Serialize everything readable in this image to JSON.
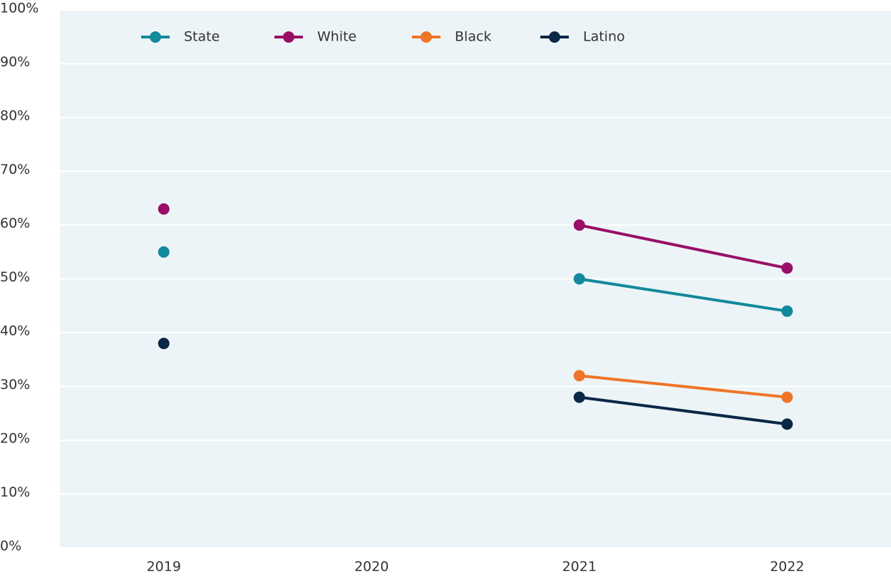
{
  "chart_data": {
    "type": "line",
    "categories": [
      "2019",
      "2020",
      "2021",
      "2022"
    ],
    "series": [
      {
        "name": "State",
        "color": "#12899c",
        "values": [
          55,
          null,
          50,
          44
        ]
      },
      {
        "name": "White",
        "color": "#990f68",
        "values": [
          63,
          null,
          60,
          52
        ]
      },
      {
        "name": "Black",
        "color": "#ee7628",
        "values": [
          null,
          null,
          32,
          28
        ]
      },
      {
        "name": "Latino",
        "color": "#0b2747",
        "values": [
          38,
          null,
          28,
          23
        ]
      }
    ],
    "ylim": [
      0,
      100
    ],
    "yticks": [
      {
        "value": 0,
        "label": "0%"
      },
      {
        "value": 10,
        "label": "10%"
      },
      {
        "value": 20,
        "label": "20%"
      },
      {
        "value": 30,
        "label": "30%"
      },
      {
        "value": 40,
        "label": "40%"
      },
      {
        "value": 50,
        "label": "50%"
      },
      {
        "value": 60,
        "label": "60%"
      },
      {
        "value": 70,
        "label": "70%"
      },
      {
        "value": 80,
        "label": "80%"
      },
      {
        "value": 90,
        "label": "90%"
      },
      {
        "value": 100,
        "label": "100%"
      }
    ],
    "grid": true
  }
}
